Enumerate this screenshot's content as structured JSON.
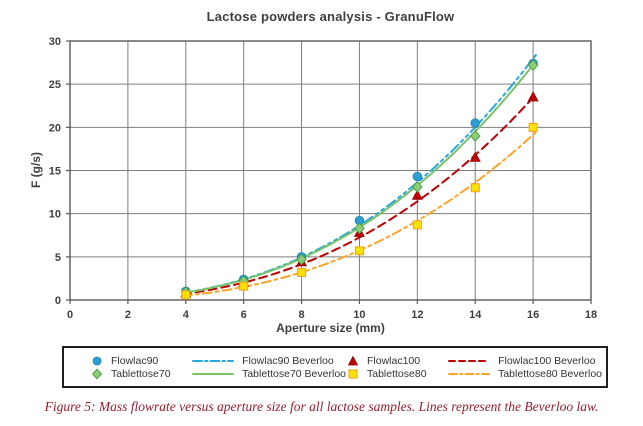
{
  "figure": {
    "caption": "Figure 5: Mass flowrate versus aperture size for all lactose samples. Lines represent the Beverloo law."
  },
  "chart_data": {
    "type": "scatter",
    "title": "Lactose powders analysis - GranuFlow",
    "xlabel": "Aperture size (mm)",
    "ylabel": "F (g/s)",
    "xlim": [
      0,
      18
    ],
    "ylim": [
      0,
      30
    ],
    "xticks": [
      0,
      2,
      4,
      6,
      8,
      10,
      12,
      14,
      16,
      18
    ],
    "yticks": [
      0,
      5,
      10,
      15,
      20,
      25,
      30
    ],
    "grid": true,
    "legend_position": "bottom",
    "x": [
      4,
      6,
      8,
      10,
      12,
      14,
      16
    ],
    "series": [
      {
        "name": "Flowlac90",
        "kind": "markers",
        "marker": "circle",
        "color": "#2e9fd6",
        "edge": "#1b7fb4",
        "values": [
          1.0,
          2.4,
          5.0,
          9.2,
          14.3,
          20.5,
          27.4
        ]
      },
      {
        "name": "Flowlac90 Beverloo",
        "kind": "line",
        "style": "dashdotdot",
        "color": "#29a8de",
        "beverloo_c": 0.0273,
        "beverloo_kd": 0
      },
      {
        "name": "Flowlac100",
        "kind": "markers",
        "marker": "triangle",
        "color": "#c00000",
        "edge": "#8e0000",
        "values": [
          0.8,
          2.0,
          4.4,
          7.8,
          12.1,
          16.5,
          23.5
        ]
      },
      {
        "name": "Flowlac100 Beverloo",
        "kind": "line",
        "style": "dashed",
        "color": "#c00000",
        "beverloo_c": 0.0229,
        "beverloo_kd": 0
      },
      {
        "name": "Tablettose70",
        "kind": "markers",
        "marker": "diamond",
        "color": "#8cce76",
        "edge": "#4e9d44",
        "values": [
          0.9,
          2.2,
          4.7,
          8.3,
          13.1,
          19.0,
          27.2
        ]
      },
      {
        "name": "Tablettose70 Beverloo",
        "kind": "line",
        "style": "solid",
        "color": "#7ac36a",
        "beverloo_c": 0.0266,
        "beverloo_kd": 0
      },
      {
        "name": "Tablettose80",
        "kind": "markers",
        "marker": "square",
        "color": "#ffe100",
        "edge": "#efa11e",
        "values": [
          0.6,
          1.6,
          3.2,
          5.7,
          8.7,
          13.0,
          20.0
        ]
      },
      {
        "name": "Tablettose80 Beverloo",
        "kind": "line",
        "style": "dashdot",
        "color": "#ffa426",
        "beverloo_c": 0.0196,
        "beverloo_kd": 0.3
      }
    ],
    "curve_x_range": [
      3.9,
      16.15
    ],
    "colors": {
      "axis": "#595959",
      "grid": "#7f7f7f",
      "text": "#3f3f3f",
      "caption": "#93202f"
    }
  }
}
